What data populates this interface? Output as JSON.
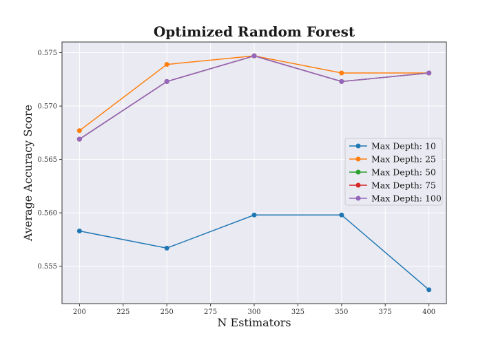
{
  "chart_data": {
    "type": "line",
    "title": "Optimized Random Forest",
    "xlabel": "N Estimators",
    "ylabel": "Average Accuracy Score",
    "x": [
      200,
      250,
      300,
      350,
      400
    ],
    "xlim": [
      190,
      410
    ],
    "ylim": [
      0.5515,
      0.576
    ],
    "xticks": [
      200,
      225,
      250,
      275,
      300,
      325,
      350,
      375,
      400
    ],
    "yticks": [
      0.555,
      0.56,
      0.565,
      0.57,
      0.575
    ],
    "ytick_labels": [
      "0.555",
      "0.560",
      "0.565",
      "0.570",
      "0.575"
    ],
    "grid": true,
    "legend_position": "center-right",
    "plot_background": "#eaeaf2",
    "grid_color": "#ffffff",
    "series": [
      {
        "name": "Max Depth: 10",
        "color": "#1f77b4",
        "values": [
          0.5583,
          0.5567,
          0.5598,
          0.5598,
          0.5528
        ]
      },
      {
        "name": "Max Depth: 25",
        "color": "#ff7f0e",
        "values": [
          0.5677,
          0.5739,
          0.5747,
          0.5731,
          0.5731
        ]
      },
      {
        "name": "Max Depth: 50",
        "color": "#2ca02c",
        "values": [
          0.5669,
          0.5723,
          0.5747,
          0.5723,
          0.5731
        ]
      },
      {
        "name": "Max Depth: 75",
        "color": "#d62728",
        "values": [
          0.5669,
          0.5723,
          0.5747,
          0.5723,
          0.5731
        ]
      },
      {
        "name": "Max Depth: 100",
        "color": "#9467bd",
        "values": [
          0.5669,
          0.5723,
          0.5747,
          0.5723,
          0.5731
        ]
      }
    ]
  }
}
